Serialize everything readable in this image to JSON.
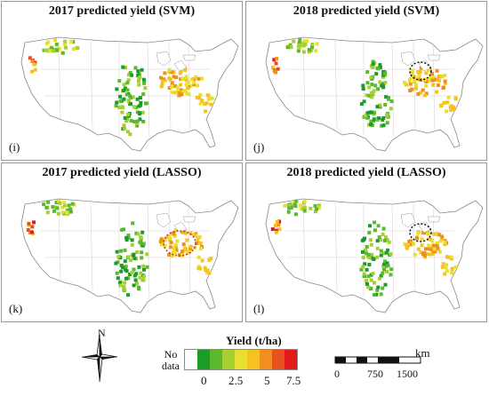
{
  "panels": [
    {
      "title": "2017 predicted yield (SVM)",
      "label": "(i)",
      "circle": false
    },
    {
      "title": "2018 predicted yield (SVM)",
      "label": "(j)",
      "circle": true
    },
    {
      "title": "2017 predicted yield (LASSO)",
      "label": "(k)",
      "circle": true
    },
    {
      "title": "2018 predicted yield (LASSO)",
      "label": "(l)",
      "circle": true
    }
  ],
  "legend": {
    "title": "Yield (t/ha)",
    "no_data_line1": "No",
    "no_data_line2": "data",
    "colors": [
      "#ffffff",
      "#1a9b2a",
      "#5cb82e",
      "#a6cf33",
      "#e8e030",
      "#f5c21f",
      "#f08f20",
      "#e8501e",
      "#e31a1c"
    ],
    "ticks": [
      "0",
      "2.5",
      "5",
      "7.5"
    ]
  },
  "compass": {
    "north_label": "N"
  },
  "scale_bar": {
    "unit": "km",
    "ticks": [
      "0",
      "750",
      "1500"
    ]
  }
}
